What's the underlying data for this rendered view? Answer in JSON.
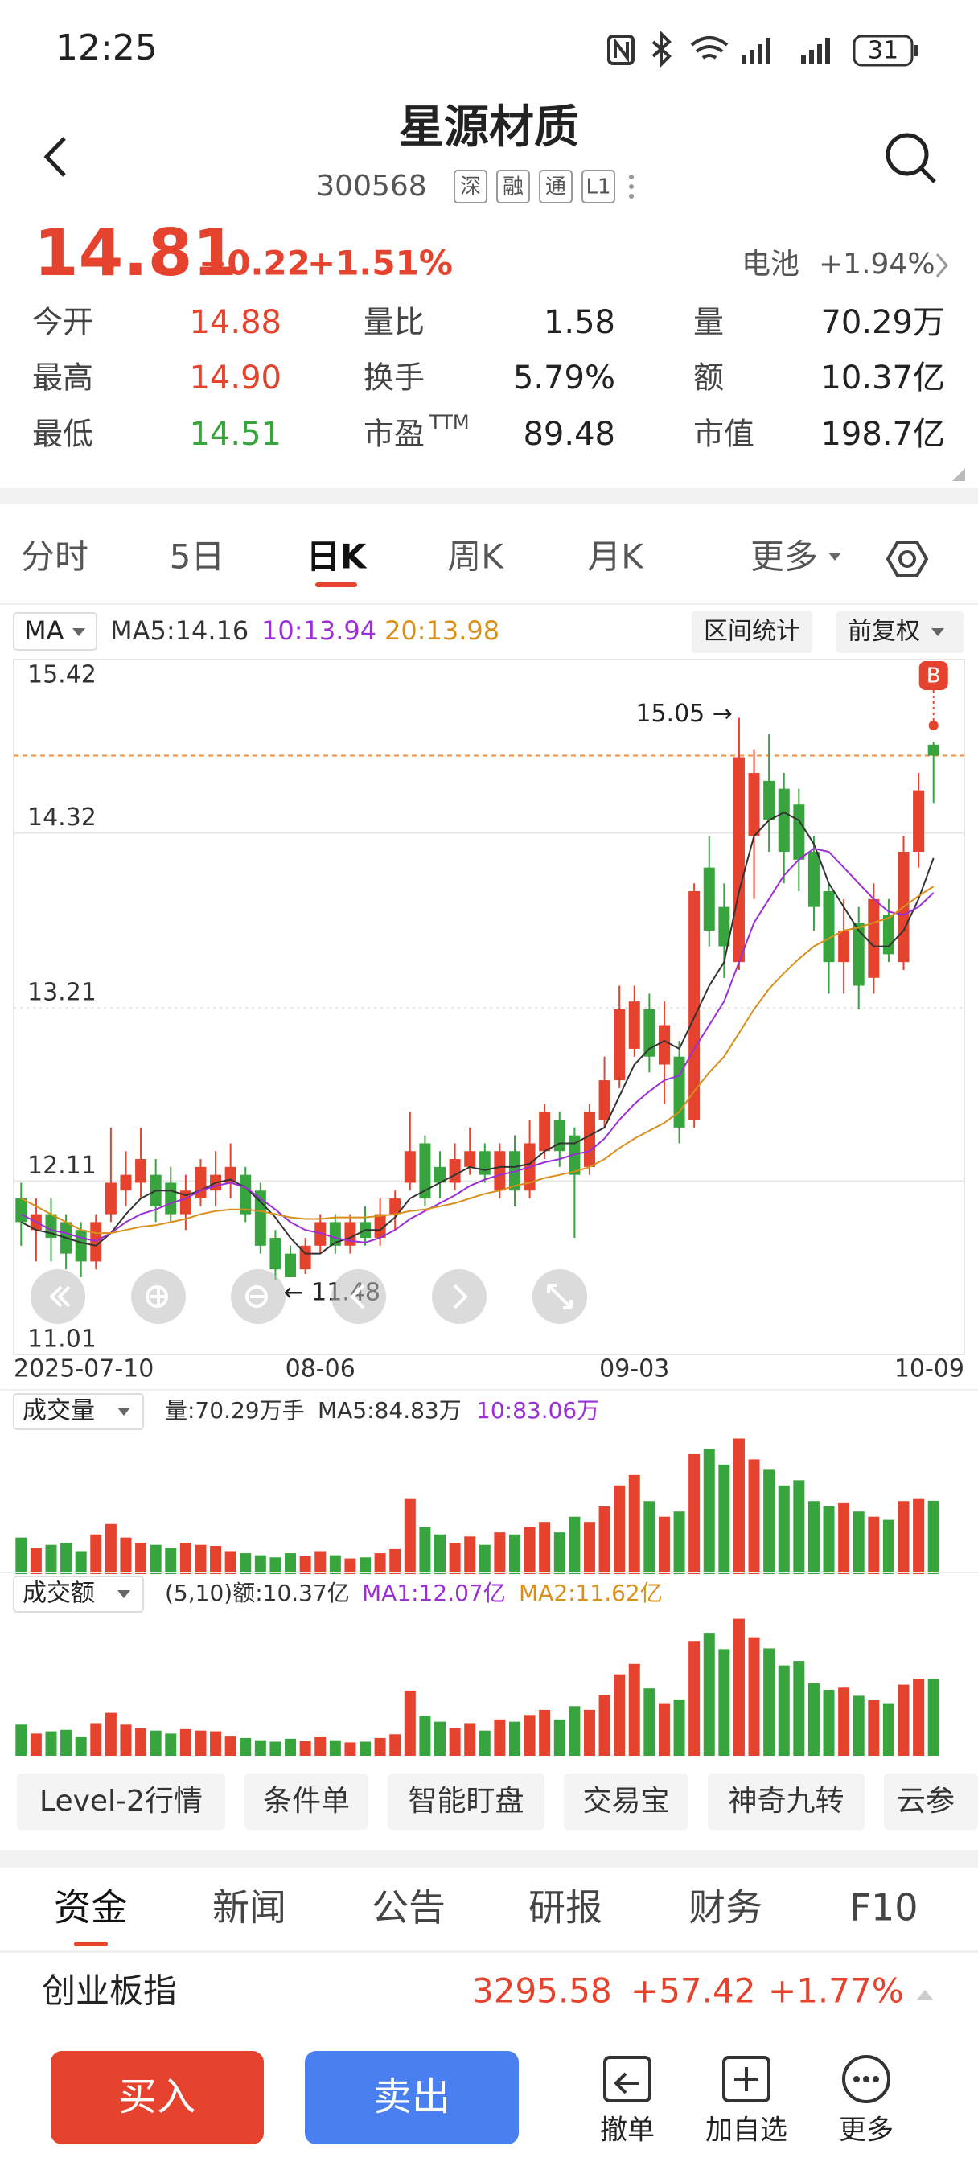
{
  "status_bar": {
    "time": "12:25",
    "battery": "31"
  },
  "header": {
    "title": "星源材质",
    "code": "300568",
    "tags": [
      "深",
      "融",
      "通",
      "L1"
    ]
  },
  "quote": {
    "price": "14.81",
    "change": "+0.22",
    "change_pct": "+1.51%",
    "sector": "电池",
    "sector_change": "+1.94%"
  },
  "stats": [
    [
      {
        "label": "今开",
        "value": "14.88"
      },
      {
        "label": "量比",
        "value": "1.58"
      },
      {
        "label": "量",
        "value": "70.29万"
      }
    ],
    [
      {
        "label": "最高",
        "value": "14.90"
      },
      {
        "label": "换手",
        "value": "5.79%"
      },
      {
        "label": "额",
        "value": "10.37亿"
      }
    ],
    [
      {
        "label": "最低",
        "value": "14.51"
      },
      {
        "label": "市盈",
        "sup": "TTM",
        "value": "89.48"
      },
      {
        "label": "市值",
        "value": "198.7亿"
      }
    ]
  ],
  "period_tabs": [
    "分时",
    "5日",
    "日K",
    "周K",
    "月K",
    "更多"
  ],
  "chart_data": [
    {
      "type": "candlestick",
      "indicator": "MA",
      "buttons": [
        "区间统计",
        "前复权"
      ],
      "up_color": "#e5432d",
      "down_color": "#37a43e",
      "price_line_color": "#f0903c",
      "ylim": [
        11.01,
        15.42
      ],
      "yticks": [
        11.01,
        12.11,
        13.21,
        14.32,
        15.42
      ],
      "annotations": [
        "15.05 →",
        "← 11.48"
      ],
      "trade_marker": "B",
      "categories": [
        "2025-07-10",
        null,
        null,
        null,
        null,
        null,
        null,
        null,
        null,
        null,
        null,
        null,
        null,
        null,
        null,
        null,
        null,
        null,
        null,
        null,
        "08-06",
        null,
        null,
        null,
        null,
        null,
        null,
        null,
        null,
        null,
        null,
        null,
        null,
        null,
        null,
        null,
        null,
        null,
        null,
        null,
        null,
        "09-03",
        null,
        null,
        null,
        null,
        null,
        null,
        null,
        null,
        null,
        null,
        null,
        null,
        null,
        null,
        null,
        null,
        null,
        null,
        null,
        "10-09"
      ],
      "open": [
        12.0,
        11.8,
        11.9,
        11.85,
        11.8,
        11.6,
        11.9,
        12.05,
        12.1,
        12.15,
        12.1,
        11.9,
        12.0,
        12.05,
        12.1,
        12.15,
        12.05,
        11.75,
        11.65,
        11.55,
        11.7,
        11.85,
        11.7,
        11.85,
        11.75,
        11.9,
        12.1,
        12.35,
        12.2,
        12.1,
        12.2,
        12.3,
        12.05,
        12.3,
        12.05,
        12.3,
        12.5,
        12.4,
        12.2,
        12.5,
        12.75,
        12.95,
        13.2,
        12.85,
        12.9,
        12.5,
        14.1,
        13.85,
        13.5,
        14.3,
        14.65,
        14.6,
        14.5,
        14.2,
        13.95,
        13.5,
        13.75,
        13.4,
        13.8,
        13.5,
        14.2,
        14.88
      ],
      "high": [
        12.1,
        12.0,
        12.0,
        11.9,
        11.85,
        11.9,
        12.45,
        12.3,
        12.45,
        12.25,
        12.2,
        12.15,
        12.25,
        12.3,
        12.35,
        12.2,
        12.1,
        11.8,
        11.7,
        11.75,
        11.9,
        11.9,
        11.9,
        11.95,
        12.0,
        12.05,
        12.55,
        12.4,
        12.3,
        12.35,
        12.45,
        12.35,
        12.35,
        12.4,
        12.5,
        12.6,
        12.55,
        12.45,
        12.6,
        12.9,
        13.35,
        13.35,
        13.3,
        13.25,
        13.0,
        14.0,
        14.3,
        14.0,
        15.05,
        14.85,
        14.95,
        14.7,
        14.6,
        14.3,
        14.0,
        13.9,
        13.85,
        14.0,
        13.9,
        14.3,
        14.7,
        14.9
      ],
      "low": [
        11.7,
        11.6,
        11.6,
        11.55,
        11.5,
        11.55,
        11.85,
        11.95,
        12.0,
        11.85,
        11.85,
        11.8,
        11.95,
        11.95,
        12.0,
        11.85,
        11.65,
        11.48,
        11.5,
        11.52,
        11.65,
        11.65,
        11.65,
        11.7,
        11.7,
        11.8,
        12.05,
        11.95,
        12.0,
        12.05,
        12.15,
        12.1,
        12.0,
        11.95,
        12.0,
        12.25,
        12.2,
        11.75,
        12.15,
        12.45,
        12.7,
        12.9,
        12.8,
        12.6,
        12.35,
        12.45,
        13.6,
        13.4,
        13.45,
        13.9,
        14.2,
        14.0,
        13.95,
        13.7,
        13.3,
        13.3,
        13.2,
        13.3,
        13.5,
        13.45,
        14.1,
        14.51
      ],
      "close": [
        11.85,
        11.9,
        11.75,
        11.65,
        11.6,
        11.85,
        12.1,
        12.15,
        12.25,
        11.95,
        11.9,
        12.05,
        12.2,
        12.15,
        12.2,
        11.9,
        11.7,
        11.55,
        11.5,
        11.7,
        11.85,
        11.7,
        11.85,
        11.75,
        11.9,
        12.0,
        12.3,
        12.0,
        12.1,
        12.25,
        12.3,
        12.15,
        12.3,
        12.05,
        12.35,
        12.55,
        12.3,
        12.15,
        12.55,
        12.75,
        13.2,
        13.25,
        12.9,
        13.1,
        12.45,
        13.95,
        13.7,
        13.6,
        14.8,
        14.7,
        14.4,
        14.2,
        14.15,
        13.85,
        13.5,
        13.7,
        13.35,
        13.9,
        13.55,
        14.2,
        14.59,
        14.81
      ],
      "series": [
        {
          "name": "MA5:14.16",
          "color": "#333333",
          "values": [
            11.85,
            11.8,
            11.78,
            11.75,
            11.72,
            11.7,
            11.78,
            11.9,
            12.0,
            12.05,
            12.05,
            12.02,
            12.05,
            12.1,
            12.12,
            12.07,
            11.98,
            11.88,
            11.75,
            11.65,
            11.65,
            11.72,
            11.75,
            11.8,
            11.8,
            11.88,
            12.0,
            12.05,
            12.1,
            12.15,
            12.2,
            12.18,
            12.2,
            12.2,
            12.22,
            12.3,
            12.35,
            12.35,
            12.4,
            12.45,
            12.65,
            12.85,
            12.95,
            13.0,
            12.95,
            13.15,
            13.35,
            13.5,
            13.95,
            14.3,
            14.4,
            14.45,
            14.4,
            14.25,
            14.0,
            13.85,
            13.7,
            13.6,
            13.6,
            13.7,
            13.9,
            14.16
          ]
        },
        {
          "name": "10:13.94",
          "color": "#9b2fd6",
          "values": [
            11.9,
            11.85,
            11.8,
            11.78,
            11.75,
            11.73,
            11.78,
            11.85,
            11.9,
            11.93,
            11.97,
            12.0,
            12.05,
            12.08,
            12.1,
            12.07,
            12.0,
            11.93,
            11.85,
            11.8,
            11.78,
            11.75,
            11.73,
            11.72,
            11.75,
            11.8,
            11.87,
            11.92,
            11.97,
            12.02,
            12.08,
            12.12,
            12.15,
            12.17,
            12.2,
            12.23,
            12.25,
            12.28,
            12.3,
            12.38,
            12.5,
            12.6,
            12.68,
            12.75,
            12.78,
            12.95,
            13.1,
            13.25,
            13.5,
            13.75,
            13.9,
            14.05,
            14.15,
            14.22,
            14.2,
            14.1,
            14.0,
            13.9,
            13.82,
            13.8,
            13.85,
            13.94
          ]
        },
        {
          "name": "20:13.98",
          "color": "#d98f1b",
          "values": [
            12.0,
            11.95,
            11.9,
            11.85,
            11.8,
            11.78,
            11.78,
            11.8,
            11.82,
            11.83,
            11.85,
            11.87,
            11.9,
            11.92,
            11.93,
            11.93,
            11.92,
            11.9,
            11.88,
            11.87,
            11.87,
            11.88,
            11.88,
            11.88,
            11.89,
            11.9,
            11.92,
            11.93,
            11.95,
            11.97,
            12.0,
            12.03,
            12.05,
            12.08,
            12.1,
            12.13,
            12.15,
            12.17,
            12.2,
            12.25,
            12.32,
            12.38,
            12.43,
            12.48,
            12.55,
            12.68,
            12.8,
            12.9,
            13.05,
            13.2,
            13.33,
            13.43,
            13.52,
            13.6,
            13.65,
            13.7,
            13.72,
            13.75,
            13.78,
            13.85,
            13.92,
            13.98
          ]
        }
      ]
    },
    {
      "type": "bar",
      "label": "成交量",
      "ylim": [
        0,
        135
      ],
      "legend": [
        {
          "text": "量:70.29万手",
          "color": "#333333"
        },
        {
          "text": "MA5:84.83万",
          "color": "#333333"
        },
        {
          "text": "10:83.06万",
          "color": "#9b2fd6"
        }
      ],
      "values": [
        35,
        25,
        28,
        30,
        22,
        38,
        48,
        35,
        30,
        28,
        25,
        30,
        28,
        27,
        22,
        20,
        18,
        16,
        20,
        17,
        22,
        18,
        15,
        16,
        20,
        24,
        72,
        45,
        38,
        30,
        36,
        28,
        40,
        38,
        45,
        50,
        40,
        55,
        50,
        65,
        85,
        95,
        70,
        55,
        60,
        115,
        120,
        105,
        130,
        110,
        100,
        85,
        90,
        70,
        65,
        68,
        60,
        55,
        52,
        70,
        72,
        70.29
      ]
    },
    {
      "type": "bar",
      "label": "成交额",
      "ylim": [
        0,
        19
      ],
      "legend": [
        {
          "text": "(5,10)额:10.37亿",
          "color": "#333333"
        },
        {
          "text": "MA1:12.07亿",
          "color": "#9b2fd6"
        },
        {
          "text": "MA2:11.62亿",
          "color": "#d98f1b"
        }
      ],
      "values": [
        4.2,
        3.0,
        3.3,
        3.5,
        2.6,
        4.4,
        5.8,
        4.2,
        3.7,
        3.4,
        3.0,
        3.6,
        3.4,
        3.3,
        2.7,
        2.4,
        2.1,
        1.9,
        2.3,
        2.0,
        2.6,
        2.1,
        1.8,
        1.9,
        2.4,
        2.9,
        8.8,
        5.4,
        4.6,
        3.7,
        4.4,
        3.4,
        4.9,
        4.6,
        5.5,
        6.2,
        4.9,
        6.7,
        6.2,
        8.2,
        11.0,
        12.4,
        9.1,
        7.1,
        7.6,
        15.5,
        16.6,
        14.4,
        18.5,
        16.0,
        14.5,
        12.2,
        12.8,
        9.8,
        8.9,
        9.2,
        8.1,
        7.5,
        7.1,
        9.6,
        10.4,
        10.37
      ]
    }
  ],
  "tool_chips": [
    "Level-2行情",
    "条件单",
    "智能盯盘",
    "交易宝",
    "神奇九转",
    "云参"
  ],
  "info_tabs": [
    "资金",
    "新闻",
    "公告",
    "研报",
    "财务",
    "F10"
  ],
  "index_bar": {
    "name": "创业板指",
    "value": "3295.58",
    "change": "+57.42",
    "change_pct": "+1.77%"
  },
  "actions": {
    "buy": "买入",
    "sell": "卖出",
    "tools": [
      "撤单",
      "加自选",
      "更多"
    ]
  }
}
